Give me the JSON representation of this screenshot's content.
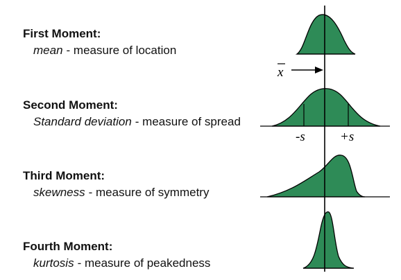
{
  "moments": [
    {
      "title": "First Moment:",
      "term": "mean",
      "description": "- measure of location"
    },
    {
      "title": "Second Moment:",
      "term": "Standard deviation",
      "description": "- measure of spread"
    },
    {
      "title": "Third Moment:",
      "term": "skewness",
      "description": "- measure of symmetry"
    },
    {
      "title": "Fourth Moment:",
      "term": "kurtosis",
      "description": "- measure of peakedness"
    }
  ],
  "labels": {
    "mean_symbol": "x",
    "minus_s": "-s",
    "plus_s": "+s"
  }
}
